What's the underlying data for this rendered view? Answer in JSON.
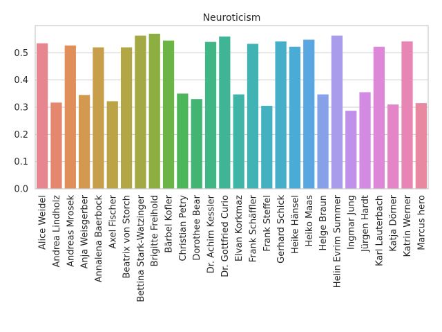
{
  "chart_data": {
    "type": "bar",
    "title": "Neuroticism",
    "xlabel": "",
    "ylabel": "",
    "ylim": [
      0,
      0.6
    ],
    "yticks": [
      "0.0",
      "0.1",
      "0.2",
      "0.3",
      "0.4",
      "0.5"
    ],
    "grid": true,
    "categories": [
      "Alice Weidel",
      "Andrea Lindholz",
      "Andreas Mrosek",
      "Anja Weisgerber",
      "Annalena Baerbock",
      "Axel Fischer",
      "Beatrix von Storch",
      "Bettina Stark-Watzinger",
      "Brigitte Freihold",
      "Bärbel Kofler",
      "Christian Petry",
      "Dorothee Bear",
      "Dr. Achim Kessler",
      "Dr. Gottfried Curio",
      "Elvan Korkmaz",
      "Frank Schäffler",
      "Frank Steffel",
      "Gerhard Schick",
      "Heike Hänsel",
      "Heiko Maas",
      "Helge Braun",
      "Helin Evrim Summer",
      "Ingmar Jung",
      "Jürgen Hardt",
      "Karl Lauterbach",
      "Katja Dörner",
      "Katrin Werner",
      "Marcus hero"
    ],
    "values": [
      0.535,
      0.317,
      0.527,
      0.345,
      0.52,
      0.322,
      0.52,
      0.563,
      0.57,
      0.545,
      0.35,
      0.33,
      0.54,
      0.56,
      0.347,
      0.533,
      0.305,
      0.542,
      0.522,
      0.548,
      0.347,
      0.563,
      0.287,
      0.355,
      0.522,
      0.31,
      0.542,
      0.315
    ],
    "colors": [
      "#e8868f",
      "#e5876f",
      "#e08f5b",
      "#d39a4f",
      "#c79f4a",
      "#bca446",
      "#b2a744",
      "#a3aa43",
      "#8daf42",
      "#6db447",
      "#4db65a",
      "#43b573",
      "#40b586",
      "#3fb595",
      "#40b4a6",
      "#41b3b5",
      "#43b1c0",
      "#45afc9",
      "#4aacd5",
      "#5aa6e0",
      "#86a1e8",
      "#a99cea",
      "#c091e8",
      "#d28ae3",
      "#de86d8",
      "#e485c7",
      "#e786b4",
      "#e888a1"
    ]
  }
}
